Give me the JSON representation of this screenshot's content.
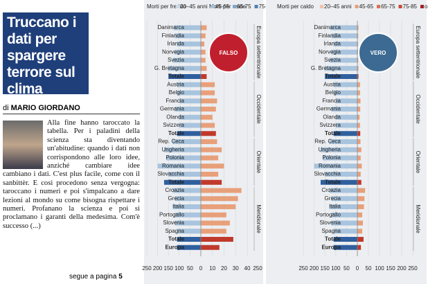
{
  "article": {
    "title": "Truccano i dati per spargere terrore sul clima",
    "byline_prefix": "di",
    "author": "MARIO GIORDANO",
    "body": "Alla fine hanno taroccato la tabella. Per i paladini della scienza sta diventando un'abitudine: quando i dati non corrispondono alle loro idee, anziché cambiare idee cambiano i dati. C'est plus facile, come con il sanbittèr. E così procedono senza vergogna: taroccano i numeri e poi s'impalcano a dare lezioni al mondo su come bisogna rispettare i numeri. Profanano la scienza e poi si proclamano i garanti della medesima. Com'è successo (...)",
    "continued": "segue a pagina",
    "continued_page": "5"
  },
  "chart_data": {
    "type": "diverging-bar",
    "legend": [
      "20–45 anni",
      "45-65",
      "65-75",
      "75-85",
      "oltre 85"
    ],
    "legend_colors": [
      "#c9d9ea",
      "#a8c4de",
      "#7fa6cc",
      "#4f7fb5",
      "#2f5f9e"
    ],
    "cold_lim": [
      0,
      250
    ],
    "cold_ticks": [
      250,
      200,
      150,
      100,
      50,
      0
    ],
    "cold_color": "#a8c4de",
    "cold_total_color": "#2f5f9e",
    "heat_color": "#e8a07a",
    "heat_total_color": "#c0392b",
    "categories": [
      "Danimarca",
      "Finlandia",
      "Irlanda",
      "Norvegia",
      "Svezia",
      "G. Bretagna",
      "Totale",
      "Austria",
      "Belgio",
      "Francia",
      "Germania",
      "Olanda",
      "Svizzera",
      "Totale",
      "Rep. Ceca",
      "Ungheria",
      "Polonia",
      "Romania",
      "Slovacchia",
      "Totale",
      "Croazia",
      "Grecia",
      "Italia",
      "Portogallo",
      "Slovenia",
      "Spagna",
      "Totale",
      "Europa"
    ],
    "cold": [
      125,
      120,
      110,
      120,
      130,
      150,
      150,
      110,
      110,
      100,
      120,
      100,
      100,
      110,
      130,
      170,
      160,
      200,
      150,
      170,
      130,
      120,
      130,
      120,
      120,
      110,
      110,
      110
    ],
    "heat": [
      5,
      4,
      3,
      4,
      4,
      5,
      5,
      12,
      12,
      14,
      13,
      10,
      12,
      13,
      14,
      18,
      15,
      20,
      15,
      18,
      35,
      32,
      30,
      22,
      25,
      22,
      28,
      16
    ],
    "groups": [
      {
        "label": "Europa settentrionale",
        "rows": [
          0,
          6
        ]
      },
      {
        "label": "Occidentale",
        "rows": [
          7,
          13
        ]
      },
      {
        "label": "Orientale",
        "rows": [
          14,
          19
        ]
      },
      {
        "label": "Meridionale",
        "rows": [
          20,
          27
        ]
      }
    ],
    "panels": [
      {
        "cold_title": "Morti per freddo",
        "heat_title": "Morti per caldo",
        "stamp": "FALSO",
        "stamp_color": "#c0202e",
        "heat_lim": [
          0,
          40
        ],
        "heat_ticks": [
          10,
          20,
          30,
          40
        ],
        "axis_end_label": "250"
      },
      {
        "heat_title": "Morti per caldo",
        "stamp": "VERO",
        "stamp_color": "#3d6a92",
        "heat_lim": [
          0,
          250
        ],
        "heat_ticks": [
          50,
          100,
          150,
          200,
          250
        ]
      }
    ]
  }
}
